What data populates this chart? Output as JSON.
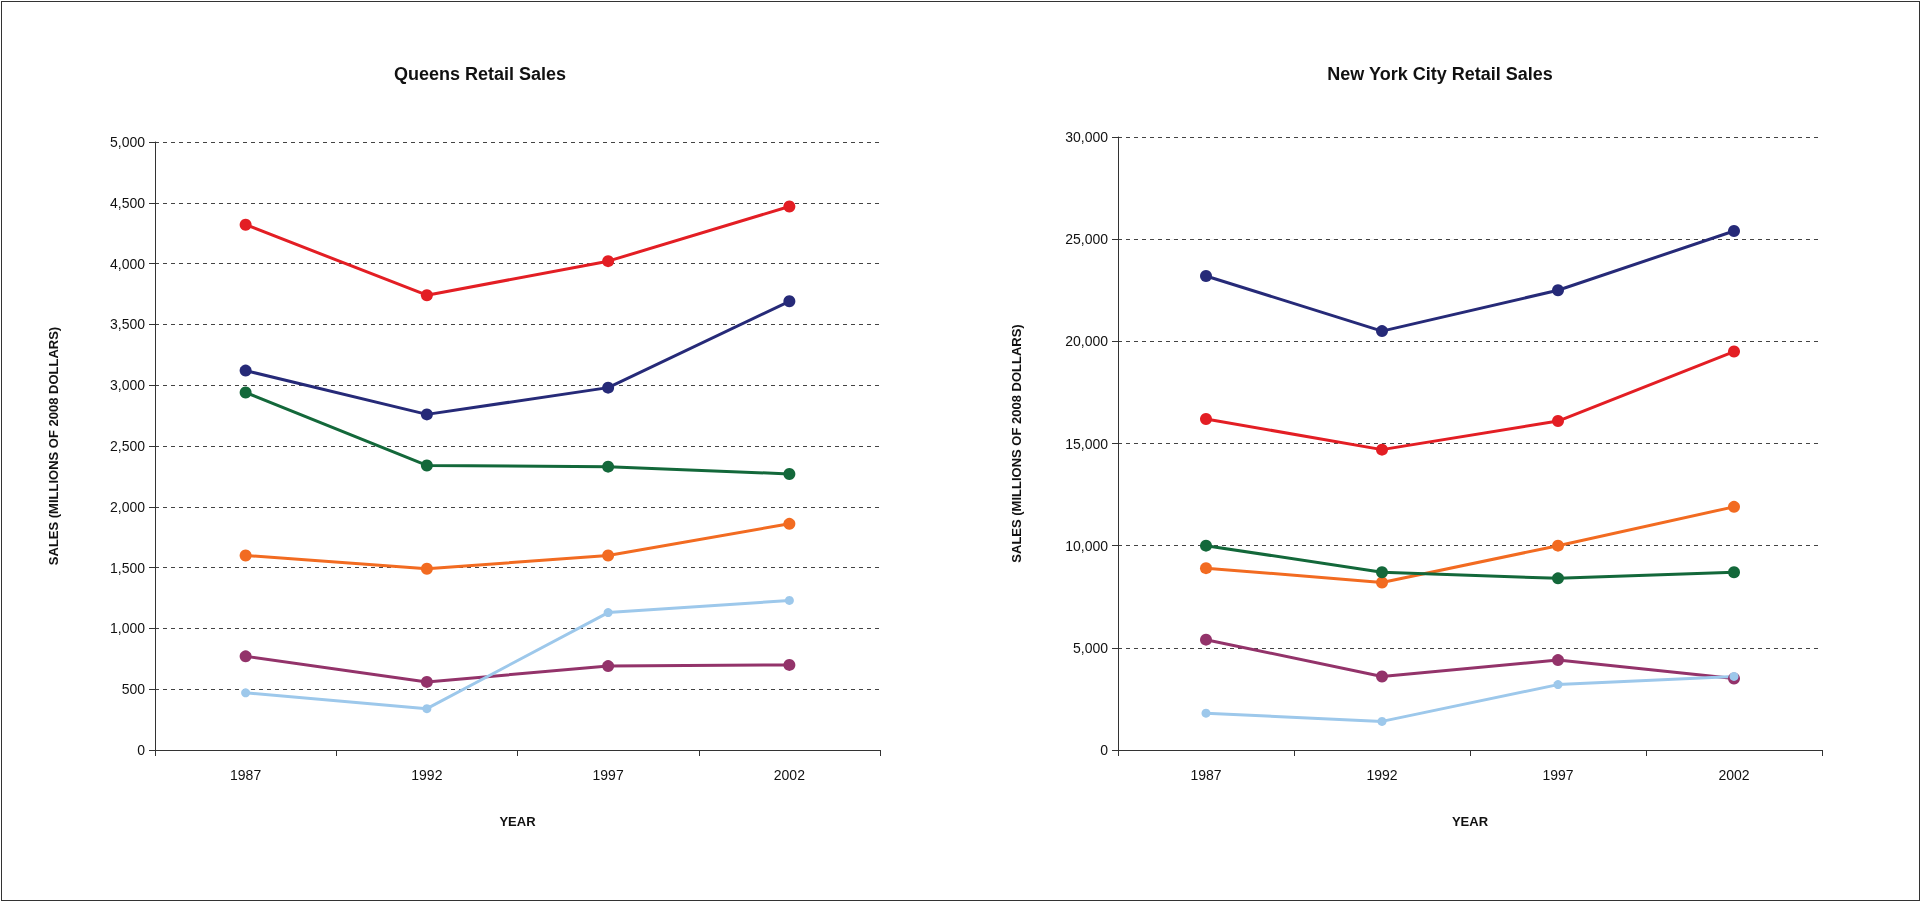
{
  "chart_data": [
    {
      "type": "line",
      "title": "Queens Retail Sales",
      "xlabel": "YEAR",
      "ylabel": "SALES (MILLIONS OF 2008 DOLLARS)",
      "categories": [
        "1987",
        "1992",
        "1997",
        "2002"
      ],
      "ylim": [
        0,
        5000
      ],
      "yticks": [
        {
          "value": 0,
          "label": "0"
        },
        {
          "value": 500,
          "label": "500"
        },
        {
          "value": 1000,
          "label": "1,000"
        },
        {
          "value": 1500,
          "label": "1,500"
        },
        {
          "value": 2000,
          "label": "2,000"
        },
        {
          "value": 2500,
          "label": "2,500"
        },
        {
          "value": 3000,
          "label": "3,000"
        },
        {
          "value": 3500,
          "label": "3,500"
        },
        {
          "value": 4000,
          "label": "4,000"
        },
        {
          "value": 4500,
          "label": "4,500"
        },
        {
          "value": 5000,
          "label": "5,000"
        }
      ],
      "grid": "y",
      "marker": "circle",
      "line_style": "solid",
      "series": [
        {
          "color": "#e31e24",
          "values": [
            4320,
            3740,
            4020,
            4470
          ]
        },
        {
          "color": "#262a78",
          "values": [
            3120,
            2760,
            2980,
            3690
          ]
        },
        {
          "color": "#13683a",
          "values": [
            2940,
            2340,
            2330,
            2270
          ]
        },
        {
          "color": "#f26b21",
          "values": [
            1600,
            1490,
            1600,
            1860
          ]
        },
        {
          "color": "#93336a",
          "values": [
            770,
            560,
            690,
            700
          ]
        },
        {
          "color": "#9dc8eb",
          "values": [
            470,
            340,
            1130,
            1230
          ]
        }
      ]
    },
    {
      "type": "line",
      "title": "New York City Retail Sales",
      "xlabel": "YEAR",
      "ylabel": "SALES (MILLIONS OF 2008 DOLLARS)",
      "categories": [
        "1987",
        "1992",
        "1997",
        "2002"
      ],
      "ylim": [
        0,
        30000
      ],
      "yticks": [
        {
          "value": 0,
          "label": "0"
        },
        {
          "value": 5000,
          "label": "5,000"
        },
        {
          "value": 10000,
          "label": "10,000"
        },
        {
          "value": 15000,
          "label": "15,000"
        },
        {
          "value": 20000,
          "label": "20,000"
        },
        {
          "value": 25000,
          "label": "25,000"
        },
        {
          "value": 30000,
          "label": "30,000"
        }
      ],
      "grid": "y",
      "marker": "circle",
      "line_style": "solid",
      "series": [
        {
          "color": "#262a78",
          "values": [
            23200,
            20500,
            22500,
            25400
          ]
        },
        {
          "color": "#e31e24",
          "values": [
            16200,
            14700,
            16100,
            19500
          ]
        },
        {
          "color": "#f26b21",
          "values": [
            8900,
            8200,
            10000,
            11900
          ]
        },
        {
          "color": "#13683a",
          "values": [
            10000,
            8700,
            8400,
            8700
          ]
        },
        {
          "color": "#93336a",
          "values": [
            5400,
            3600,
            4400,
            3500
          ]
        },
        {
          "color": "#9dc8eb",
          "values": [
            1800,
            1400,
            3200,
            3600
          ]
        }
      ]
    }
  ]
}
